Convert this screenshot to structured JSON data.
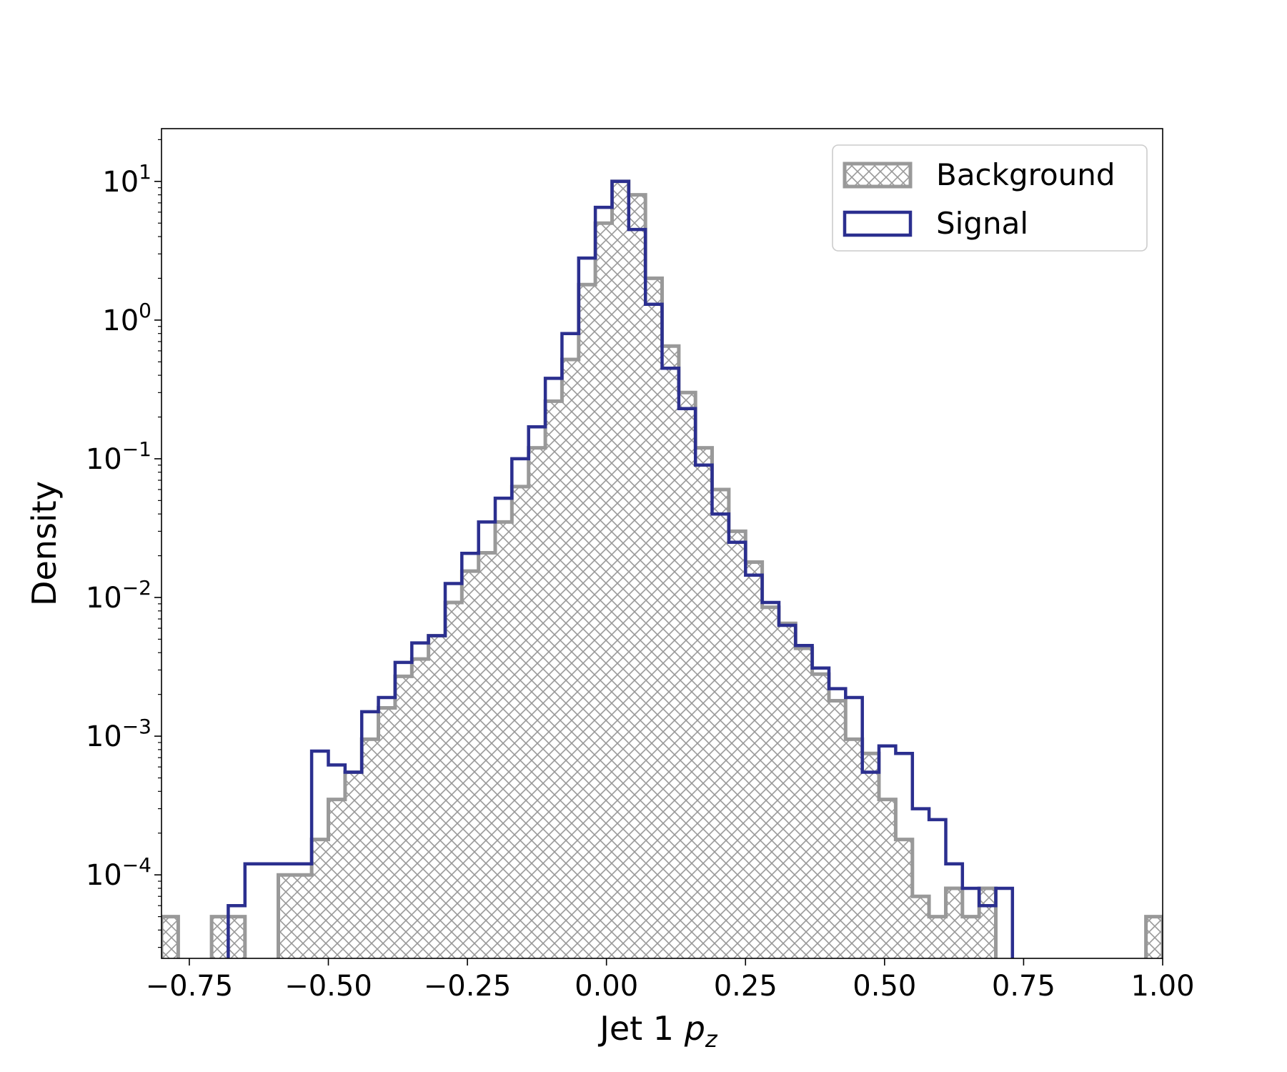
{
  "chart_data": {
    "type": "histogram",
    "xlabel_main": "Jet 1 ",
    "xlabel_symbol": "p",
    "xlabel_subscript": "z",
    "ylabel": "Density",
    "xlim": [
      -0.8,
      1.0
    ],
    "ylim": [
      2.5e-05,
      24
    ],
    "yscale": "log",
    "legend_position": "top-right",
    "bin_width": 0.03,
    "x_ticks": [
      {
        "value": -0.75,
        "label": "−0.75"
      },
      {
        "value": -0.5,
        "label": "−0.50"
      },
      {
        "value": -0.25,
        "label": "−0.25"
      },
      {
        "value": 0.0,
        "label": "0.00"
      },
      {
        "value": 0.25,
        "label": "0.25"
      },
      {
        "value": 0.5,
        "label": "0.50"
      },
      {
        "value": 0.75,
        "label": "0.75"
      },
      {
        "value": 1.0,
        "label": "1.00"
      }
    ],
    "y_ticks": [
      {
        "value": 10,
        "base": "10",
        "exp": "1"
      },
      {
        "value": 1,
        "base": "10",
        "exp": "0"
      },
      {
        "value": 0.1,
        "base": "10",
        "exp": "−1"
      },
      {
        "value": 0.01,
        "base": "10",
        "exp": "−2"
      },
      {
        "value": 0.001,
        "base": "10",
        "exp": "−3"
      },
      {
        "value": 0.0001,
        "base": "10",
        "exp": "−4"
      }
    ],
    "series": [
      {
        "name": "Background",
        "color": "#999999",
        "style": "hatched",
        "bins": [
          [
            -0.8,
            5e-05
          ],
          [
            -0.71,
            5e-05
          ],
          [
            -0.68,
            5e-05
          ],
          [
            -0.59,
            0.0001
          ],
          [
            -0.56,
            0.0001
          ],
          [
            -0.53,
            0.00018
          ],
          [
            -0.5,
            0.00035
          ],
          [
            -0.47,
            0.00055
          ],
          [
            -0.44,
            0.00095
          ],
          [
            -0.41,
            0.0016
          ],
          [
            -0.38,
            0.0027
          ],
          [
            -0.35,
            0.0036
          ],
          [
            -0.32,
            0.0053
          ],
          [
            -0.29,
            0.0092
          ],
          [
            -0.26,
            0.0155
          ],
          [
            -0.23,
            0.021
          ],
          [
            -0.2,
            0.035
          ],
          [
            -0.17,
            0.063
          ],
          [
            -0.14,
            0.12
          ],
          [
            -0.11,
            0.26
          ],
          [
            -0.08,
            0.52
          ],
          [
            -0.05,
            1.8
          ],
          [
            -0.02,
            5.0
          ],
          [
            0.01,
            10.0
          ],
          [
            0.04,
            8.0
          ],
          [
            0.07,
            2.0
          ],
          [
            0.1,
            0.65
          ],
          [
            0.13,
            0.3
          ],
          [
            0.16,
            0.12
          ],
          [
            0.19,
            0.06
          ],
          [
            0.22,
            0.03
          ],
          [
            0.25,
            0.018
          ],
          [
            0.28,
            0.0085
          ],
          [
            0.31,
            0.0065
          ],
          [
            0.34,
            0.0043
          ],
          [
            0.37,
            0.0028
          ],
          [
            0.4,
            0.0018
          ],
          [
            0.43,
            0.00095
          ],
          [
            0.46,
            0.00075
          ],
          [
            0.49,
            0.00035
          ],
          [
            0.52,
            0.00018
          ],
          [
            0.55,
            7e-05
          ],
          [
            0.58,
            5e-05
          ],
          [
            0.61,
            8e-05
          ],
          [
            0.64,
            5e-05
          ],
          [
            0.67,
            8e-05
          ],
          [
            0.97,
            5e-05
          ]
        ]
      },
      {
        "name": "Signal",
        "color": "#2b2f8f",
        "style": "step",
        "bins": [
          [
            -0.68,
            6e-05
          ],
          [
            -0.65,
            0.00012
          ],
          [
            -0.62,
            0.00012
          ],
          [
            -0.59,
            0.00012
          ],
          [
            -0.56,
            0.00012
          ],
          [
            -0.53,
            0.00078
          ],
          [
            -0.5,
            0.00062
          ],
          [
            -0.47,
            0.00055
          ],
          [
            -0.44,
            0.0015
          ],
          [
            -0.41,
            0.0019
          ],
          [
            -0.38,
            0.0034
          ],
          [
            -0.35,
            0.0047
          ],
          [
            -0.32,
            0.0053
          ],
          [
            -0.29,
            0.0126
          ],
          [
            -0.26,
            0.0208
          ],
          [
            -0.23,
            0.035
          ],
          [
            -0.2,
            0.052
          ],
          [
            -0.17,
            0.1
          ],
          [
            -0.14,
            0.17
          ],
          [
            -0.11,
            0.38
          ],
          [
            -0.08,
            0.8
          ],
          [
            -0.05,
            2.8
          ],
          [
            -0.02,
            6.5
          ],
          [
            0.01,
            10.0
          ],
          [
            0.04,
            4.5
          ],
          [
            0.07,
            1.3
          ],
          [
            0.1,
            0.45
          ],
          [
            0.13,
            0.23
          ],
          [
            0.16,
            0.09
          ],
          [
            0.19,
            0.04
          ],
          [
            0.22,
            0.025
          ],
          [
            0.25,
            0.0145
          ],
          [
            0.28,
            0.0092
          ],
          [
            0.31,
            0.0063
          ],
          [
            0.34,
            0.0045
          ],
          [
            0.37,
            0.0031
          ],
          [
            0.4,
            0.0022
          ],
          [
            0.43,
            0.0019
          ],
          [
            0.46,
            0.00055
          ],
          [
            0.49,
            0.00085
          ],
          [
            0.52,
            0.00075
          ],
          [
            0.55,
            0.0003
          ],
          [
            0.58,
            0.00025
          ],
          [
            0.61,
            0.00012
          ],
          [
            0.64,
            8e-05
          ],
          [
            0.67,
            6e-05
          ],
          [
            0.7,
            8e-05
          ]
        ]
      }
    ]
  }
}
